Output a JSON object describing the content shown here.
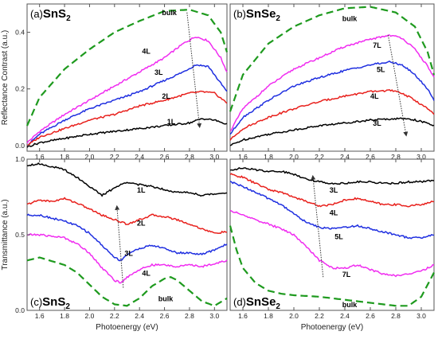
{
  "colors": {
    "1L": "#000000",
    "2L": "#e8201c",
    "3L": "#1f2fe0",
    "4L": "#f02cf0",
    "bulk": "#1e9a1e",
    "3L_se": "#000000",
    "4L_se": "#e8201c",
    "5L_se": "#1f2fe0",
    "7L_se": "#f02cf0"
  },
  "chart_data": [
    {
      "id": "a",
      "panel_label": "(a)",
      "material": "SnS",
      "sub": "2",
      "type": "line",
      "xlim": [
        1.5,
        3.1
      ],
      "ylim": [
        -0.02,
        0.5
      ],
      "xticks": [
        "1.6",
        "1.8",
        "2.0",
        "2.2",
        "2.4",
        "2.6",
        "2.8",
        "3.0"
      ],
      "yticks": [
        "0.0",
        "0.2",
        "0.4"
      ],
      "ylabel": "Reflectance Contrast (a.u.)",
      "xlabel": "",
      "series": [
        {
          "name": "bulk",
          "color": "#1e9a1e",
          "dash": true,
          "x": [
            1.5,
            1.6,
            1.8,
            2.0,
            2.2,
            2.4,
            2.6,
            2.8,
            2.95,
            3.05,
            3.1
          ],
          "y": [
            0.07,
            0.17,
            0.27,
            0.34,
            0.4,
            0.44,
            0.475,
            0.48,
            0.46,
            0.4,
            0.33
          ]
        },
        {
          "name": "4L",
          "color": "#f02cf0",
          "x": [
            1.5,
            1.6,
            1.8,
            2.0,
            2.2,
            2.4,
            2.6,
            2.75,
            2.85,
            2.95,
            3.05,
            3.1
          ],
          "y": [
            0.01,
            0.05,
            0.11,
            0.16,
            0.21,
            0.26,
            0.31,
            0.36,
            0.385,
            0.37,
            0.31,
            0.26
          ]
        },
        {
          "name": "3L",
          "color": "#1f2fe0",
          "x": [
            1.5,
            1.6,
            1.8,
            2.0,
            2.2,
            2.4,
            2.6,
            2.75,
            2.85,
            2.95,
            3.05,
            3.1
          ],
          "y": [
            0.0,
            0.04,
            0.09,
            0.13,
            0.16,
            0.19,
            0.23,
            0.26,
            0.285,
            0.28,
            0.22,
            0.19
          ]
        },
        {
          "name": "2L",
          "color": "#e8201c",
          "x": [
            1.5,
            1.6,
            1.8,
            2.0,
            2.2,
            2.4,
            2.6,
            2.8,
            2.9,
            3.0,
            3.1
          ],
          "y": [
            0.0,
            0.03,
            0.06,
            0.09,
            0.11,
            0.14,
            0.16,
            0.185,
            0.19,
            0.185,
            0.15
          ]
        },
        {
          "name": "1L",
          "color": "#000000",
          "x": [
            1.5,
            1.6,
            1.8,
            2.0,
            2.2,
            2.4,
            2.6,
            2.8,
            2.9,
            3.0,
            3.1
          ],
          "y": [
            -0.005,
            0.01,
            0.025,
            0.04,
            0.05,
            0.06,
            0.07,
            0.08,
            0.095,
            0.09,
            0.075
          ]
        }
      ],
      "labels": [
        {
          "text": "bulk",
          "x": 2.58,
          "y": 0.46
        },
        {
          "text": "4L",
          "x": 2.42,
          "y": 0.325
        },
        {
          "text": "3L",
          "x": 2.52,
          "y": 0.25
        },
        {
          "text": "2L",
          "x": 2.58,
          "y": 0.165
        },
        {
          "text": "1L",
          "x": 2.62,
          "y": 0.075
        }
      ],
      "arrow": {
        "x1": 2.78,
        "y1": 0.47,
        "x2": 2.88,
        "y2": 0.07
      }
    },
    {
      "id": "b",
      "panel_label": "(b)",
      "material": "SnSe",
      "sub": "2",
      "type": "line",
      "xlim": [
        1.5,
        3.1
      ],
      "ylim": [
        -0.02,
        0.5
      ],
      "xticks": [
        "1.6",
        "1.8",
        "2.0",
        "2.2",
        "2.4",
        "2.6",
        "2.8",
        "3.0"
      ],
      "yticks": [],
      "ylabel": "",
      "xlabel": "",
      "series": [
        {
          "name": "bulk",
          "color": "#1e9a1e",
          "dash": true,
          "x": [
            1.5,
            1.6,
            1.8,
            2.0,
            2.2,
            2.4,
            2.6,
            2.8,
            2.95,
            3.05,
            3.1
          ],
          "y": [
            0.12,
            0.25,
            0.36,
            0.42,
            0.46,
            0.485,
            0.49,
            0.47,
            0.42,
            0.33,
            0.25
          ]
        },
        {
          "name": "7L",
          "color": "#f02cf0",
          "x": [
            1.5,
            1.6,
            1.8,
            2.0,
            2.2,
            2.4,
            2.6,
            2.75,
            2.85,
            2.95,
            3.05,
            3.1
          ],
          "y": [
            0.05,
            0.13,
            0.21,
            0.27,
            0.31,
            0.35,
            0.375,
            0.39,
            0.38,
            0.34,
            0.28,
            0.24
          ]
        },
        {
          "name": "5L",
          "color": "#1f2fe0",
          "x": [
            1.5,
            1.6,
            1.8,
            2.0,
            2.2,
            2.4,
            2.6,
            2.75,
            2.85,
            2.95,
            3.05,
            3.1
          ],
          "y": [
            0.04,
            0.1,
            0.16,
            0.21,
            0.24,
            0.265,
            0.285,
            0.295,
            0.285,
            0.25,
            0.2,
            0.16
          ]
        },
        {
          "name": "4L",
          "color": "#e8201c",
          "x": [
            1.5,
            1.6,
            1.8,
            2.0,
            2.2,
            2.4,
            2.6,
            2.75,
            2.85,
            2.95,
            3.05,
            3.1
          ],
          "y": [
            0.02,
            0.06,
            0.1,
            0.13,
            0.155,
            0.175,
            0.19,
            0.195,
            0.185,
            0.16,
            0.13,
            0.11
          ]
        },
        {
          "name": "3L",
          "color": "#000000",
          "x": [
            1.5,
            1.6,
            1.8,
            2.0,
            2.2,
            2.4,
            2.6,
            2.8,
            2.9,
            3.0,
            3.1
          ],
          "y": [
            0.0,
            0.02,
            0.04,
            0.055,
            0.07,
            0.08,
            0.09,
            0.095,
            0.095,
            0.085,
            0.07
          ]
        }
      ],
      "labels": [
        {
          "text": "bulk",
          "x": 2.38,
          "y": 0.44
        },
        {
          "text": "7L",
          "x": 2.62,
          "y": 0.345
        },
        {
          "text": "5L",
          "x": 2.65,
          "y": 0.26
        },
        {
          "text": "4L",
          "x": 2.6,
          "y": 0.165
        },
        {
          "text": "3L",
          "x": 2.62,
          "y": 0.07
        }
      ],
      "arrow": {
        "x1": 2.74,
        "y1": 0.39,
        "x2": 2.88,
        "y2": 0.04
      }
    },
    {
      "id": "c",
      "panel_label": "(c)",
      "material": "SnS",
      "sub": "2",
      "type": "line",
      "xlim": [
        1.5,
        3.1
      ],
      "ylim": [
        0.0,
        1.0
      ],
      "xticks": [
        "1.6",
        "1.8",
        "2.0",
        "2.2",
        "2.4",
        "2.6",
        "2.8",
        "3.0"
      ],
      "yticks": [
        "0.0",
        "0.5",
        "1.0"
      ],
      "ylabel": "Transmittance (a.u.)",
      "xlabel": "Photoenergy (eV)",
      "series": [
        {
          "name": "1L",
          "color": "#000000",
          "x": [
            1.5,
            1.6,
            1.7,
            1.8,
            1.9,
            2.0,
            2.1,
            2.2,
            2.3,
            2.4,
            2.5,
            2.6,
            2.7,
            2.8,
            2.9,
            3.0,
            3.1
          ],
          "y": [
            0.96,
            0.97,
            0.95,
            0.93,
            0.88,
            0.82,
            0.76,
            0.81,
            0.85,
            0.83,
            0.82,
            0.8,
            0.78,
            0.78,
            0.76,
            0.77,
            0.78
          ]
        },
        {
          "name": "2L",
          "color": "#e8201c",
          "x": [
            1.5,
            1.6,
            1.7,
            1.8,
            1.9,
            2.0,
            2.1,
            2.2,
            2.3,
            2.4,
            2.5,
            2.6,
            2.7,
            2.8,
            2.9,
            3.0,
            3.1
          ],
          "y": [
            0.7,
            0.73,
            0.72,
            0.74,
            0.71,
            0.67,
            0.63,
            0.6,
            0.57,
            0.6,
            0.63,
            0.62,
            0.6,
            0.57,
            0.54,
            0.51,
            0.52
          ]
        },
        {
          "name": "3L",
          "color": "#1f2fe0",
          "x": [
            1.5,
            1.6,
            1.7,
            1.8,
            1.9,
            2.0,
            2.1,
            2.2,
            2.25,
            2.3,
            2.4,
            2.5,
            2.6,
            2.7,
            2.8,
            2.9,
            3.0,
            3.1
          ],
          "y": [
            0.63,
            0.63,
            0.61,
            0.59,
            0.56,
            0.51,
            0.43,
            0.35,
            0.33,
            0.37,
            0.41,
            0.43,
            0.41,
            0.38,
            0.38,
            0.37,
            0.4,
            0.44
          ]
        },
        {
          "name": "4L",
          "color": "#f02cf0",
          "x": [
            1.5,
            1.6,
            1.7,
            1.8,
            1.9,
            2.0,
            2.1,
            2.2,
            2.25,
            2.3,
            2.4,
            2.5,
            2.6,
            2.7,
            2.8,
            2.9,
            3.0,
            3.1
          ],
          "y": [
            0.5,
            0.5,
            0.49,
            0.48,
            0.44,
            0.38,
            0.28,
            0.2,
            0.18,
            0.22,
            0.27,
            0.3,
            0.3,
            0.29,
            0.3,
            0.29,
            0.31,
            0.33
          ]
        },
        {
          "name": "bulk",
          "color": "#1e9a1e",
          "dash": true,
          "x": [
            1.5,
            1.6,
            1.8,
            1.9,
            2.0,
            2.1,
            2.2,
            2.3,
            2.4,
            2.5,
            2.6,
            2.65,
            2.7,
            2.8,
            2.9,
            3.0,
            3.1
          ],
          "y": [
            0.33,
            0.35,
            0.3,
            0.25,
            0.17,
            0.09,
            0.04,
            0.03,
            0.08,
            0.16,
            0.21,
            0.22,
            0.2,
            0.13,
            0.06,
            0.03,
            0.08
          ]
        }
      ],
      "labels": [
        {
          "text": "1L",
          "x": 2.38,
          "y": 0.78
        },
        {
          "text": "2L",
          "x": 2.38,
          "y": 0.56
        },
        {
          "text": "3L",
          "x": 2.28,
          "y": 0.36
        },
        {
          "text": "4L",
          "x": 2.42,
          "y": 0.23
        },
        {
          "text": "bulk",
          "x": 2.55,
          "y": 0.06
        }
      ],
      "arrow": {
        "x1": 2.27,
        "y1": 0.15,
        "x2": 2.22,
        "y2": 0.68
      }
    },
    {
      "id": "d",
      "panel_label": "(d)",
      "material": "SnSe",
      "sub": "2",
      "type": "line",
      "xlim": [
        1.5,
        3.1
      ],
      "ylim": [
        0.0,
        1.0
      ],
      "xticks": [
        "1.6",
        "1.8",
        "2.0",
        "2.2",
        "2.4",
        "2.6",
        "2.8",
        "3.0"
      ],
      "yticks": [],
      "ylabel": "",
      "xlabel": "Photoenergy (eV)",
      "series": [
        {
          "name": "3L",
          "color": "#000000",
          "x": [
            1.5,
            1.6,
            1.7,
            1.8,
            1.9,
            2.0,
            2.1,
            2.2,
            2.3,
            2.4,
            2.5,
            2.6,
            2.7,
            2.8,
            2.9,
            3.0,
            3.1
          ],
          "y": [
            0.93,
            0.94,
            0.93,
            0.92,
            0.92,
            0.9,
            0.87,
            0.85,
            0.84,
            0.84,
            0.85,
            0.85,
            0.84,
            0.84,
            0.85,
            0.85,
            0.86
          ]
        },
        {
          "name": "4L",
          "color": "#e8201c",
          "x": [
            1.5,
            1.6,
            1.7,
            1.8,
            1.9,
            2.0,
            2.1,
            2.2,
            2.3,
            2.4,
            2.5,
            2.6,
            2.7,
            2.8,
            2.9,
            3.0,
            3.1
          ],
          "y": [
            0.9,
            0.88,
            0.84,
            0.8,
            0.78,
            0.75,
            0.72,
            0.69,
            0.7,
            0.73,
            0.74,
            0.72,
            0.7,
            0.7,
            0.69,
            0.7,
            0.72
          ]
        },
        {
          "name": "5L",
          "color": "#1f2fe0",
          "x": [
            1.5,
            1.6,
            1.7,
            1.8,
            1.9,
            2.0,
            2.1,
            2.2,
            2.3,
            2.4,
            2.5,
            2.6,
            2.7,
            2.8,
            2.9,
            3.0,
            3.1
          ],
          "y": [
            0.85,
            0.82,
            0.78,
            0.74,
            0.7,
            0.64,
            0.58,
            0.55,
            0.54,
            0.55,
            0.56,
            0.54,
            0.52,
            0.5,
            0.48,
            0.48,
            0.5
          ]
        },
        {
          "name": "7L",
          "color": "#f02cf0",
          "x": [
            1.5,
            1.6,
            1.7,
            1.8,
            1.9,
            2.0,
            2.1,
            2.2,
            2.3,
            2.4,
            2.5,
            2.6,
            2.7,
            2.8,
            2.9,
            3.0,
            3.1
          ],
          "y": [
            0.66,
            0.63,
            0.6,
            0.57,
            0.54,
            0.5,
            0.42,
            0.33,
            0.28,
            0.28,
            0.3,
            0.27,
            0.24,
            0.23,
            0.24,
            0.26,
            0.3
          ]
        },
        {
          "name": "bulk",
          "color": "#1e9a1e",
          "dash": true,
          "x": [
            1.5,
            1.55,
            1.6,
            1.7,
            1.8,
            1.9,
            2.0,
            2.2,
            2.4,
            2.6,
            2.8,
            2.9,
            3.0,
            3.1
          ],
          "y": [
            0.56,
            0.4,
            0.28,
            0.18,
            0.13,
            0.11,
            0.1,
            0.09,
            0.07,
            0.05,
            0.03,
            0.03,
            0.09,
            0.25
          ]
        }
      ],
      "labels": [
        {
          "text": "3L",
          "x": 2.28,
          "y": 0.78
        },
        {
          "text": "4L",
          "x": 2.28,
          "y": 0.63
        },
        {
          "text": "5L",
          "x": 2.32,
          "y": 0.47
        },
        {
          "text": "7L",
          "x": 2.38,
          "y": 0.22
        },
        {
          "text": "bulk",
          "x": 2.38,
          "y": 0.02
        }
      ],
      "arrow": {
        "x1": 2.23,
        "y1": 0.22,
        "x2": 2.15,
        "y2": 0.88
      }
    }
  ]
}
